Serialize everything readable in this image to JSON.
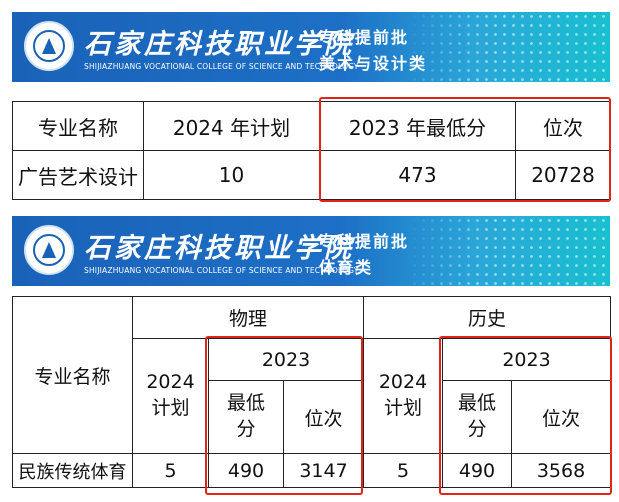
{
  "banners": [
    {
      "school_cn": "石家庄科技职业学院",
      "school_en": "SHIJIAZHUANG VOCATIONAL COLLEGE OF SCIENCE AND TECHNOLOGY",
      "batch": "专科提前批",
      "category": "美术与设计类"
    },
    {
      "school_cn": "石家庄科技职业学院",
      "school_en": "SHIJIAZHUANG VOCATIONAL COLLEGE OF SCIENCE AND TECHNOLOGY",
      "batch": "专科提前批",
      "category": "体育类"
    }
  ],
  "table1": {
    "headers": [
      "专业名称",
      "2024 年计划",
      "2023 年最低分",
      "位次"
    ],
    "rows": [
      [
        "广告艺术设计",
        "10",
        "473",
        "20728"
      ]
    ]
  },
  "table2": {
    "major_header": "专业名称",
    "physics": "物理",
    "history": "历史",
    "plan_2024": "2024\n计划",
    "year_2023": "2023",
    "min_score": "最低\n分",
    "rank": "位次",
    "rows": [
      [
        "民族传统体育",
        "5",
        "490",
        "3147",
        "5",
        "490",
        "3568"
      ]
    ]
  },
  "colors": {
    "banner_blue": "#1a62b8",
    "highlight_red": "#e2231a"
  }
}
